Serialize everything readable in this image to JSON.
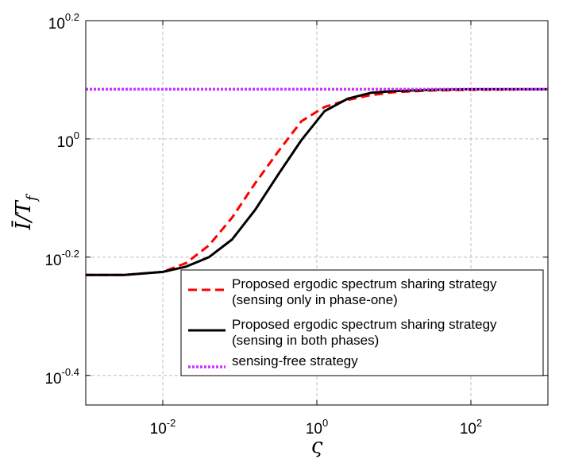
{
  "chart_data": {
    "type": "line",
    "xscale": "log",
    "yscale": "log",
    "xlim": [
      0.001,
      1000
    ],
    "ylim": [
      0.3548,
      1.5849
    ],
    "xticks": [
      {
        "value": 0.01,
        "base": "10",
        "exp": "-2"
      },
      {
        "value": 1,
        "base": "10",
        "exp": "0"
      },
      {
        "value": 100,
        "base": "10",
        "exp": "2"
      }
    ],
    "yticks": [
      {
        "value": 0.3981,
        "base": "10",
        "exp": "-0.4"
      },
      {
        "value": 0.631,
        "base": "10",
        "exp": "-0.2"
      },
      {
        "value": 1,
        "base": "10",
        "exp": "0"
      },
      {
        "value": 1.5849,
        "base": "10",
        "exp": "0.2"
      }
    ],
    "xlabel": "ς",
    "ylabel": "Ī/T_f",
    "grid": true,
    "legend_position": "lower-right",
    "series": [
      {
        "name": "Proposed ergodic spectrum sharing strategy (sensing only in phase-one)",
        "label_lines": [
          "Proposed ergodic spectrum sharing strategy",
          "(sensing only in phase-one)"
        ],
        "color": "#ff0000",
        "style": "dashed",
        "x": [
          0.001,
          0.00316,
          0.01,
          0.02,
          0.0398,
          0.0794,
          0.158,
          0.316,
          0.631,
          1.26,
          2.51,
          5.01,
          10,
          31.6,
          100,
          1000
        ],
        "y": [
          0.5888,
          0.5888,
          0.5957,
          0.6166,
          0.6607,
          0.7362,
          0.8414,
          0.9528,
          1.0715,
          1.1324,
          1.1641,
          1.1858,
          1.1995,
          1.2078,
          1.2106,
          1.2134
        ]
      },
      {
        "name": "Proposed ergodic spectrum sharing strategy (sensing in both phases)",
        "label_lines": [
          "Proposed ergodic spectrum sharing strategy",
          "(sensing in both phases)"
        ],
        "color": "#000000",
        "style": "solid",
        "x": [
          0.001,
          0.00316,
          0.01,
          0.02,
          0.0398,
          0.0794,
          0.158,
          0.316,
          0.631,
          1.26,
          2.51,
          5.01,
          10,
          31.6,
          100,
          1000
        ],
        "y": [
          0.5888,
          0.5888,
          0.5957,
          0.6081,
          0.631,
          0.6761,
          0.7586,
          0.871,
          0.9954,
          1.1141,
          1.1695,
          1.1967,
          1.205,
          1.2106,
          1.2134,
          1.2134
        ]
      },
      {
        "name": "sensing-free strategy",
        "label_lines": [
          "sensing-free strategy"
        ],
        "color": "#cc33ff",
        "style": "dotted",
        "x": [
          0.001,
          1000
        ],
        "y": [
          1.2134,
          1.2134
        ]
      }
    ]
  }
}
